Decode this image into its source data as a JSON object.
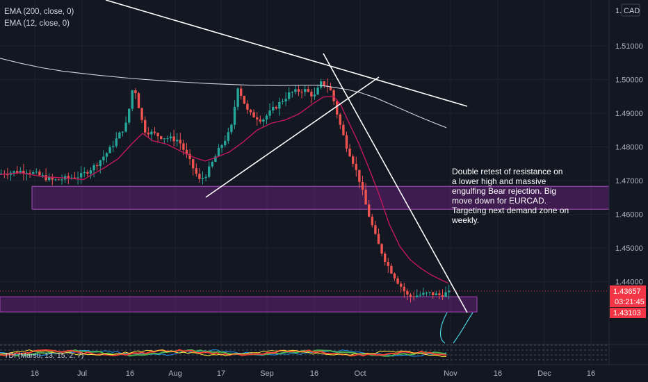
{
  "indicators": {
    "ema200_label": "EMA (200, close, 0)",
    "ema12_label": "EMA (12, close, 0)",
    "tdi_label": "TDI (Marsu, 13, 15, 2, 7)"
  },
  "currency_badge": "CAD",
  "currency_prefix": "1.",
  "annotation": [
    "Double retest of resistance on",
    "a lower high and massive",
    "engulfing Bear rejection. Big",
    "move down for EURCAD.",
    "Targeting next demand zone on",
    "weekly."
  ],
  "price_badges": {
    "last": "1.43657",
    "countdown": "03:21:45",
    "zone": "1.43103"
  },
  "colors": {
    "background": "#131722",
    "bull": "#26a69a",
    "bear": "#ef5350",
    "ema200": "#d1d4dc",
    "ema12": "#c2185b",
    "zone_fill": "#9c27b0",
    "trendline": "#ffffff",
    "badge_red": "#f23645"
  },
  "chart_data": {
    "type": "candlestick",
    "symbol": "EURCAD",
    "yticks": [
      "1.51000",
      "1.50000",
      "1.49000",
      "1.48000",
      "1.47000",
      "1.46000",
      "1.45000",
      "1.44000"
    ],
    "ylim": [
      1.424,
      1.517
    ],
    "xticks": [
      "16",
      "Jul",
      "16",
      "Aug",
      "17",
      "Sep",
      "16",
      "Oct",
      "Nov",
      "16",
      "Dec",
      "16"
    ],
    "last_price": 1.43657,
    "series": [
      {
        "name": "EMA (200, close, 0)",
        "x": [
          0,
          30,
          60,
          90,
          140,
          190,
          250,
          300,
          360,
          400,
          430,
          460,
          480,
          500,
          520,
          540,
          560,
          580,
          600,
          620,
          642
        ],
        "values": [
          1.5063,
          1.5048,
          1.5035,
          1.5025,
          1.5013,
          1.5003,
          1.4994,
          1.4988,
          1.4983,
          1.4982,
          1.4983,
          1.4983,
          1.4977,
          1.497,
          1.496,
          1.4946,
          1.4928,
          1.491,
          1.4892,
          1.4875,
          1.4857
        ]
      },
      {
        "name": "EMA (12, close, 0)",
        "x": [
          0,
          30,
          60,
          90,
          120,
          150,
          170,
          190,
          205,
          220,
          240,
          260,
          280,
          295,
          310,
          330,
          350,
          370,
          390,
          410,
          430,
          450,
          465,
          480,
          490,
          500,
          515,
          530,
          545,
          560,
          575,
          590,
          605,
          620,
          635,
          645
        ],
        "values": [
          1.4718,
          1.4723,
          1.4712,
          1.4708,
          1.4703,
          1.4738,
          1.4765,
          1.481,
          1.484,
          1.4818,
          1.4808,
          1.4787,
          1.4768,
          1.4758,
          1.4768,
          1.4785,
          1.4815,
          1.485,
          1.487,
          1.488,
          1.4898,
          1.4928,
          1.4948,
          1.495,
          1.4925,
          1.488,
          1.4815,
          1.474,
          1.466,
          1.457,
          1.4505,
          1.4465,
          1.444,
          1.442,
          1.4405,
          1.4395
        ]
      }
    ],
    "zones": [
      {
        "from": 1.4615,
        "to": 1.4683
      },
      {
        "from": 1.431,
        "to": 1.4355
      }
    ]
  }
}
